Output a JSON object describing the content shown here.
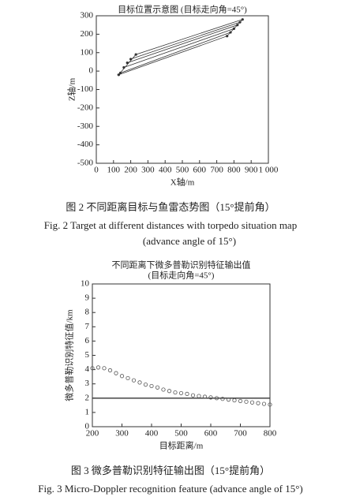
{
  "chart_data": [
    {
      "type": "line",
      "title": "目标位置示意图 (目标走向角=45°)",
      "xlabel": "X轴/m",
      "ylabel": "Z轴/m",
      "xlim": [
        0,
        1000
      ],
      "xticks": [
        0,
        100,
        200,
        300,
        400,
        500,
        600,
        700,
        800,
        900,
        {
          "value": 1000,
          "label": "1 000"
        }
      ],
      "ylim": [
        -500,
        300
      ],
      "yticks": [
        -500,
        -400,
        -300,
        -200,
        -100,
        0,
        100,
        200,
        300
      ],
      "markers": true,
      "series": [
        {
          "color": "#333333",
          "x": [
            130,
            230,
            850,
            760,
            130,
            null,
            140,
            780,
            null,
            160,
            800,
            null,
            180,
            820,
            null,
            200,
            835
          ],
          "values": [
            -20,
            90,
            280,
            190,
            -20,
            null,
            -10,
            210,
            null,
            20,
            230,
            null,
            45,
            250,
            null,
            65,
            265
          ]
        }
      ]
    },
    {
      "type": "scatter",
      "title": "不同距离下微多普勒识别特征输出值",
      "subtitle": "(目标走向角=45°)",
      "xlabel": "目标距离/m",
      "ylabel": "微多普勒识别特征值/km",
      "xlim": [
        200,
        800
      ],
      "xticks": [
        200,
        300,
        400,
        500,
        600,
        700,
        800
      ],
      "ylim": [
        0,
        10
      ],
      "yticks": [
        0,
        1,
        2,
        3,
        4,
        5,
        6,
        7,
        8,
        9,
        10
      ],
      "threshold": 2,
      "series": [
        {
          "color": "#555555",
          "x": [
            200,
            220,
            240,
            260,
            280,
            300,
            320,
            340,
            360,
            380,
            400,
            420,
            440,
            460,
            480,
            500,
            520,
            540,
            560,
            580,
            600,
            620,
            640,
            660,
            680,
            700,
            720,
            740,
            760,
            780,
            800
          ],
          "values": [
            4.1,
            4.15,
            4.1,
            3.95,
            3.75,
            3.55,
            3.4,
            3.25,
            3.1,
            2.95,
            2.85,
            2.75,
            2.6,
            2.5,
            2.4,
            2.35,
            2.3,
            2.2,
            2.15,
            2.1,
            2.05,
            2.0,
            1.95,
            1.9,
            1.85,
            1.8,
            1.75,
            1.7,
            1.65,
            1.6,
            1.55
          ]
        }
      ]
    }
  ],
  "captions": [
    "图 2 不同距离目标与鱼雷态势图（15°提前角）",
    "Fig. 2  Target at different distances with torpedo situation map",
    "(advance angle of 15°)",
    "图 3 微多普勒识别特征输出图（15°提前角）",
    "Fig. 3  Micro-Doppler recognition feature (advance angle of 15°)"
  ]
}
